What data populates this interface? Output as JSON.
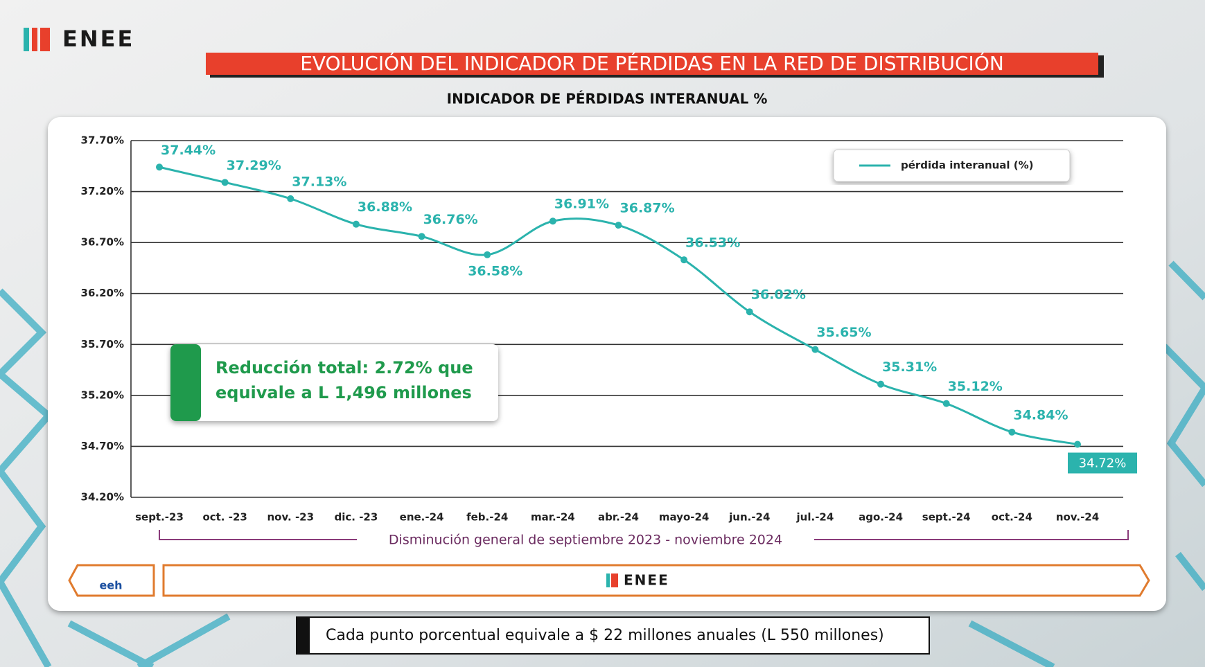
{
  "header": {
    "logo": "ENEE",
    "title": "EVOLUCIÓN DEL INDICADOR DE PÉRDIDAS EN LA RED DE DISTRIBUCIÓN"
  },
  "chart_data": {
    "type": "line",
    "title": "INDICADOR DE PÉRDIDAS INTERANUAL %",
    "categories": [
      "sept.-23",
      "oct. -23",
      "nov. -23",
      "dic. -23",
      "ene.-24",
      "feb.-24",
      "mar.-24",
      "abr.-24",
      "mayo-24",
      "jun.-24",
      "jul.-24",
      "ago.-24",
      "sept.-24",
      "oct.-24",
      "nov.-24"
    ],
    "series": [
      {
        "name": "pérdida interanual (%)",
        "color": "#2bb3ad",
        "values": [
          37.44,
          37.29,
          37.13,
          36.88,
          36.76,
          36.58,
          36.91,
          36.87,
          36.53,
          36.02,
          35.65,
          35.31,
          35.12,
          34.84,
          34.72
        ],
        "value_labels": [
          "37.44%",
          "37.29%",
          "37.13%",
          "36.88%",
          "36.76%",
          "36.58%",
          "36.91%",
          "36.87%",
          "36.53%",
          "36.02%",
          "35.65%",
          "35.31%",
          "35.12%",
          "34.84%",
          "34.72%"
        ]
      }
    ],
    "ylim": [
      34.2,
      37.7
    ],
    "yticks": [
      {
        "value": 34.2,
        "label": "34.20%"
      },
      {
        "value": 34.7,
        "label": "34.70%"
      },
      {
        "value": 35.2,
        "label": "35.20%"
      },
      {
        "value": 35.7,
        "label": "35.70%"
      },
      {
        "value": 36.2,
        "label": "36.20%"
      },
      {
        "value": 36.7,
        "label": "36.70%"
      },
      {
        "value": 37.2,
        "label": "37.20%"
      },
      {
        "value": 37.7,
        "label": "37.70%"
      }
    ],
    "grid": true,
    "legend": "upper right",
    "annotations": [
      "Reducción total: 2.72% que",
      "equivale a L 1,496 millones"
    ],
    "range_note": "Disminución general de septiembre 2023 - noviembre 2024"
  },
  "footer": {
    "partner": "eeh",
    "logo": "ENEE",
    "note": "Cada punto porcentual equivale a $ 22 millones anuales (L 550 millones)"
  }
}
